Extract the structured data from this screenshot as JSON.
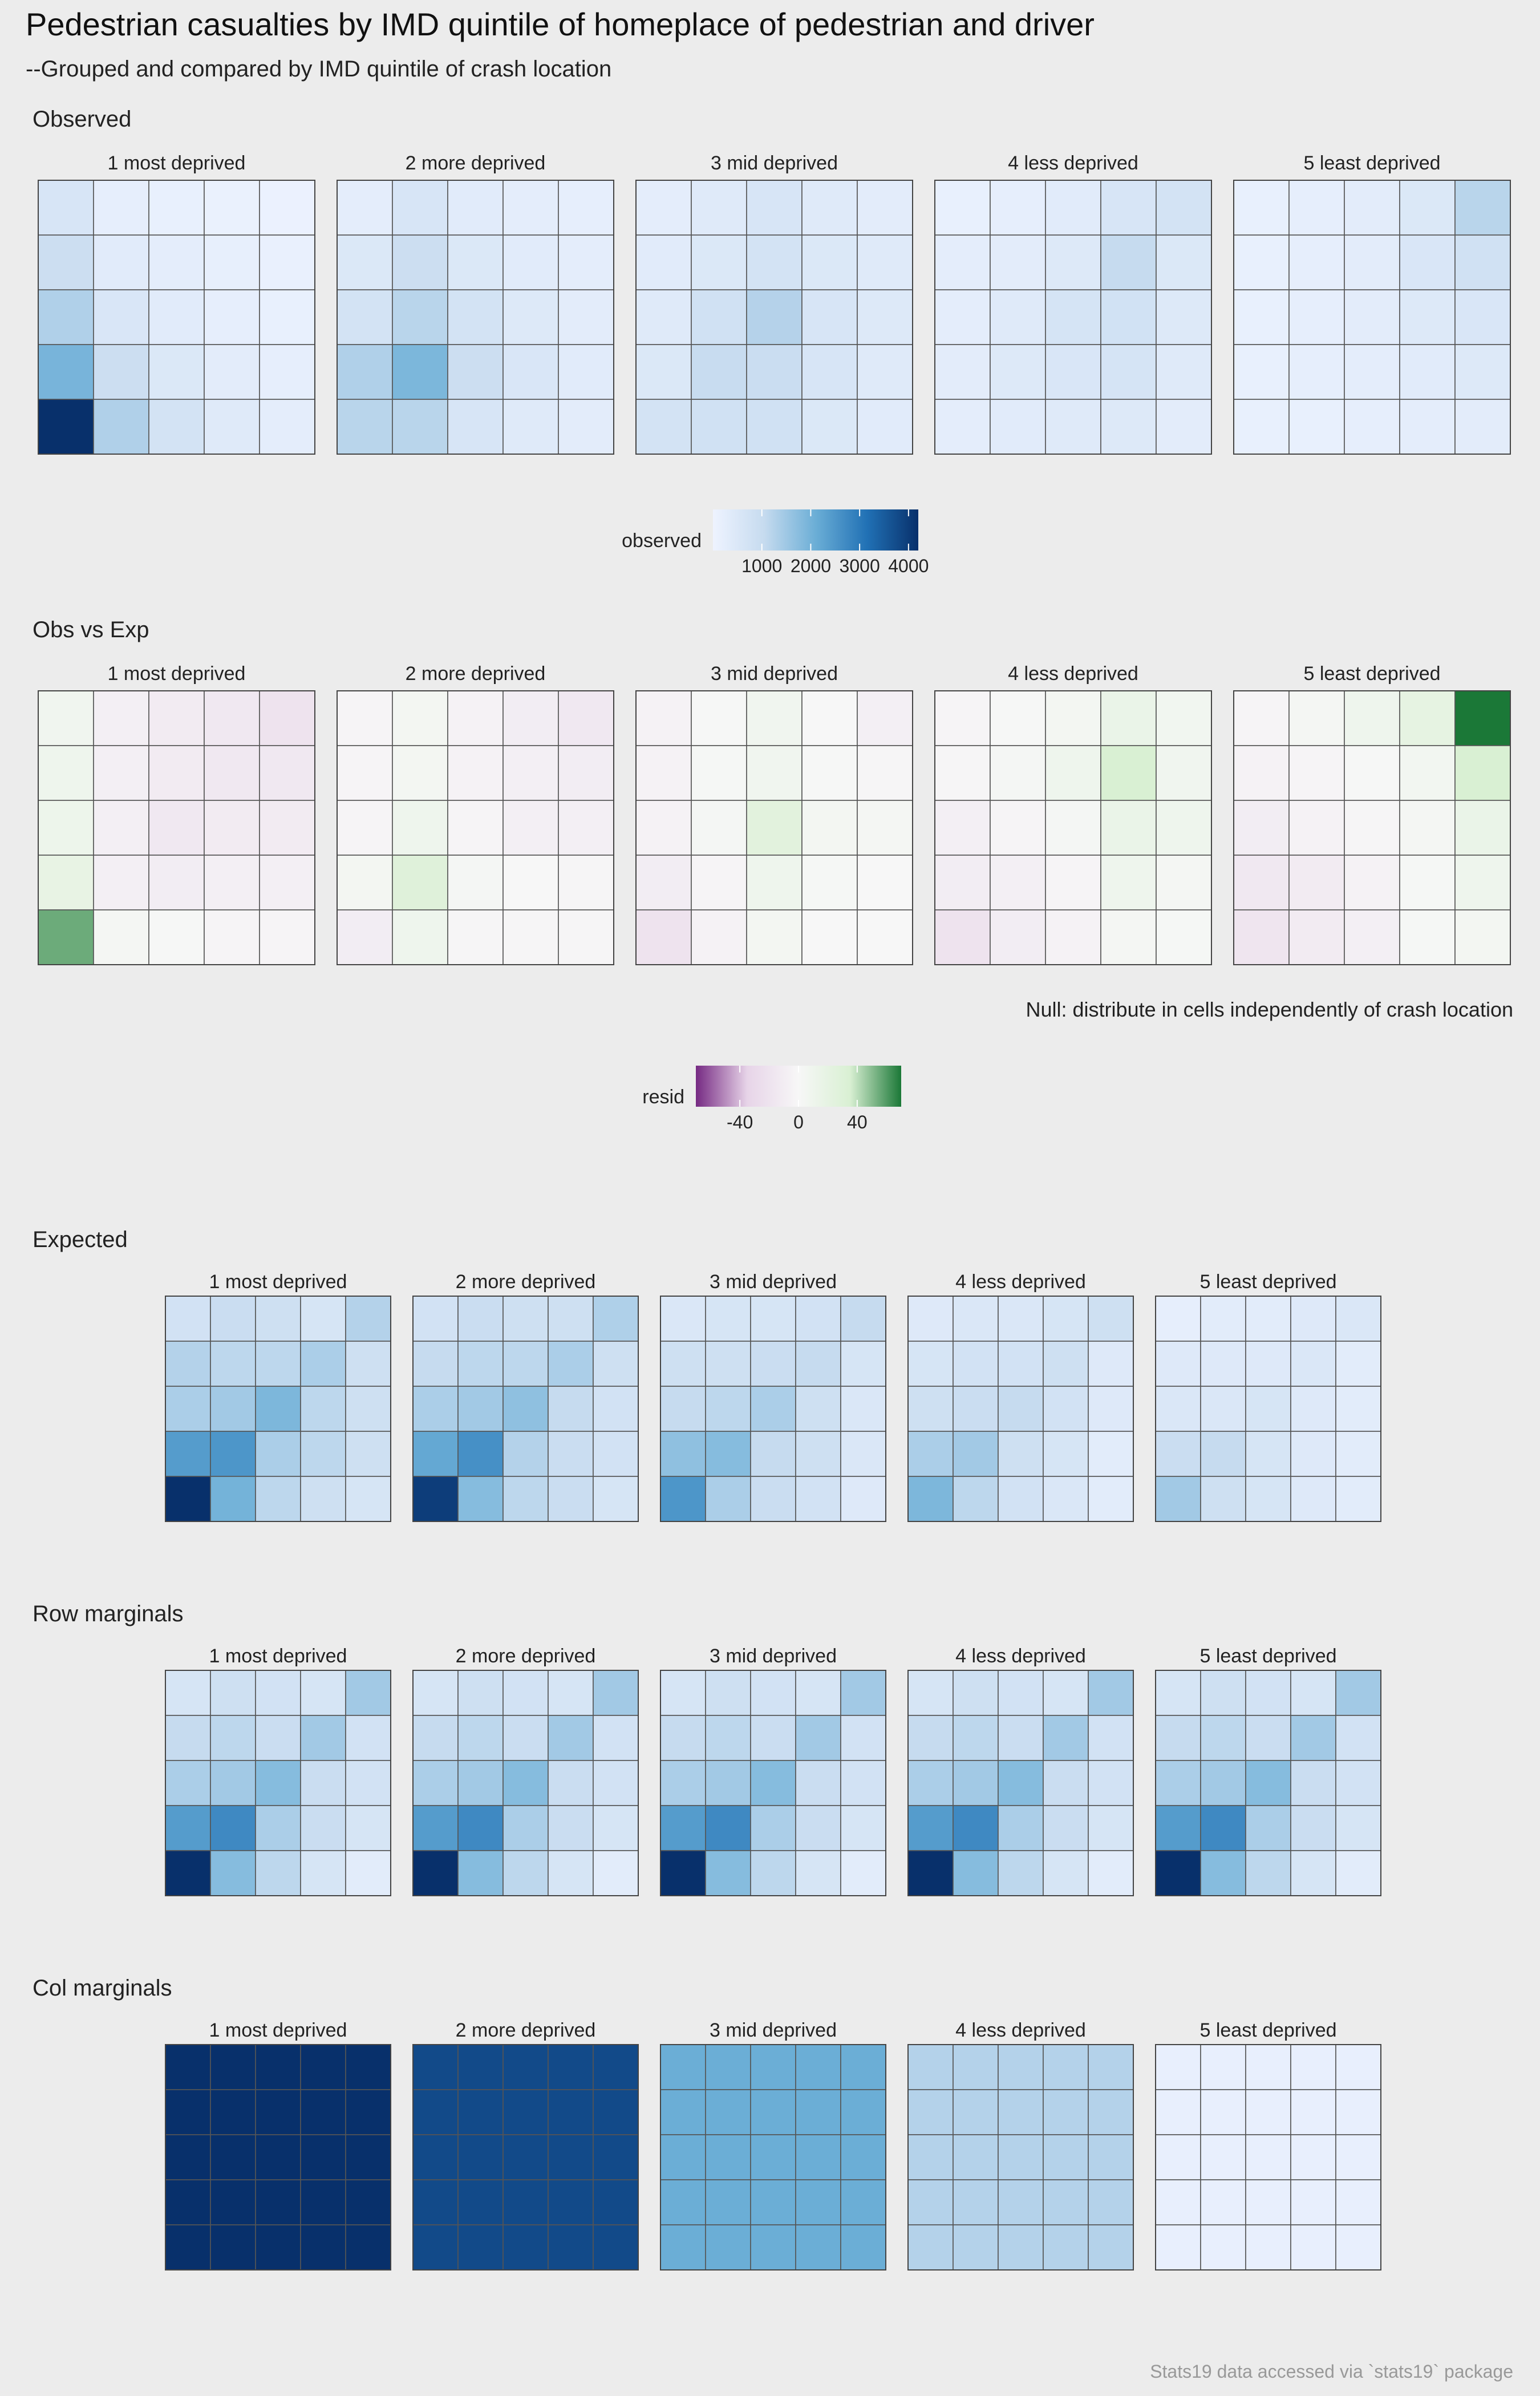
{
  "title": "Pedestrian casualties by IMD quintile of homeplace of pedestrian and driver",
  "subtitle": "--Grouped and compared by IMD quintile of crash location",
  "caption": "Stats19 data accessed via `stats19` package",
  "colors": {
    "background": "#ececec",
    "cell_border": "#555555",
    "blues": [
      "#eef3ff",
      "#c6dbef",
      "#6baed6",
      "#2171b5",
      "#08306b"
    ],
    "diverging": [
      "#762a83",
      "#e7d4e8",
      "#f7f7f7",
      "#d9f0d3",
      "#1b7837"
    ]
  },
  "chart_data": [
    {
      "type": "heatmap",
      "title": "Observed",
      "facets": [
        "1 most deprived",
        "2 more deprived",
        "3 mid deprived",
        "4 less deprived",
        "5 least deprived"
      ],
      "scale": "blues",
      "domain": [
        0,
        4200
      ],
      "legend": {
        "title": "observed",
        "ticks": [
          "1000",
          "2000",
          "3000",
          "4000"
        ],
        "tick_values": [
          1000,
          2000,
          3000,
          4000
        ]
      },
      "matrices": [
        [
          [
            600,
            200,
            150,
            100,
            80
          ],
          [
            900,
            350,
            250,
            180,
            120
          ],
          [
            1300,
            550,
            350,
            220,
            150
          ],
          [
            1950,
            900,
            500,
            300,
            200
          ],
          [
            4200,
            1300,
            700,
            400,
            250
          ]
        ],
        [
          [
            250,
            600,
            350,
            250,
            200
          ],
          [
            500,
            900,
            500,
            350,
            250
          ],
          [
            700,
            1200,
            700,
            450,
            300
          ],
          [
            1300,
            1900,
            900,
            550,
            350
          ],
          [
            1200,
            1200,
            600,
            400,
            300
          ]
        ],
        [
          [
            250,
            400,
            600,
            400,
            300
          ],
          [
            350,
            500,
            700,
            500,
            400
          ],
          [
            400,
            800,
            1250,
            600,
            450
          ],
          [
            500,
            1000,
            950,
            600,
            400
          ],
          [
            700,
            800,
            800,
            500,
            350
          ]
        ],
        [
          [
            150,
            200,
            350,
            600,
            700
          ],
          [
            250,
            300,
            450,
            1050,
            500
          ],
          [
            250,
            400,
            650,
            750,
            450
          ],
          [
            300,
            450,
            550,
            650,
            400
          ],
          [
            250,
            350,
            400,
            450,
            300
          ]
        ],
        [
          [
            150,
            200,
            300,
            500,
            1200
          ],
          [
            150,
            200,
            300,
            550,
            800
          ],
          [
            150,
            200,
            300,
            450,
            550
          ],
          [
            150,
            200,
            250,
            350,
            450
          ],
          [
            150,
            150,
            200,
            250,
            300
          ]
        ]
      ]
    },
    {
      "type": "heatmap",
      "title": "Obs vs Exp",
      "note": "Null: distribute in cells independently of crash location",
      "facets": [
        "1 most deprived",
        "2 more deprived",
        "3 mid deprived",
        "4 less deprived",
        "5 least deprived"
      ],
      "scale": "diverging",
      "domain": [
        -70,
        70
      ],
      "legend": {
        "title": "resid",
        "ticks": [
          "-40",
          "0",
          "40"
        ],
        "tick_values": [
          -40,
          0,
          40
        ]
      },
      "matrices": [
        [
          [
            8,
            -8,
            -12,
            -15,
            -20
          ],
          [
            10,
            -8,
            -12,
            -15,
            -15
          ],
          [
            12,
            -8,
            -15,
            -12,
            -12
          ],
          [
            18,
            -8,
            -10,
            -8,
            -8
          ],
          [
            55,
            4,
            1,
            -3,
            -3
          ]
        ],
        [
          [
            -3,
            5,
            -5,
            -10,
            -15
          ],
          [
            -3,
            5,
            -5,
            -8,
            -10
          ],
          [
            -3,
            10,
            -3,
            -8,
            -8
          ],
          [
            5,
            28,
            3,
            0,
            -2
          ],
          [
            -10,
            10,
            -2,
            -2,
            -2
          ]
        ],
        [
          [
            -5,
            1,
            8,
            0,
            -8
          ],
          [
            -5,
            2,
            8,
            1,
            -2
          ],
          [
            -5,
            3,
            25,
            5,
            4
          ],
          [
            -10,
            -3,
            10,
            2,
            0
          ],
          [
            -20,
            -5,
            5,
            0,
            0
          ]
        ],
        [
          [
            -3,
            1,
            5,
            15,
            7
          ],
          [
            -2,
            3,
            10,
            35,
            8
          ],
          [
            -8,
            -3,
            3,
            15,
            10
          ],
          [
            -10,
            -8,
            -3,
            10,
            4
          ],
          [
            -20,
            -10,
            -5,
            4,
            2
          ]
        ],
        [
          [
            -3,
            4,
            10,
            20,
            70
          ],
          [
            -5,
            -3,
            1,
            6,
            35
          ],
          [
            -10,
            -5,
            -2,
            4,
            15
          ],
          [
            -15,
            -12,
            -5,
            2,
            10
          ],
          [
            -18,
            -12,
            -8,
            2,
            5
          ]
        ]
      ]
    },
    {
      "type": "heatmap",
      "title": "Expected",
      "facets": [
        "1 most deprived",
        "2 more deprived",
        "3 mid deprived",
        "4 less deprived",
        "5 least deprived"
      ],
      "scale": "blues",
      "domain": [
        0,
        4000
      ],
      "matrices": [
        [
          [
            700,
            900,
            800,
            600,
            1200
          ],
          [
            1200,
            1100,
            1100,
            1300,
            800
          ],
          [
            1300,
            1400,
            1800,
            1100,
            800
          ],
          [
            2300,
            2400,
            1300,
            1100,
            800
          ],
          [
            4000,
            1900,
            1100,
            800,
            600
          ]
        ],
        [
          [
            700,
            900,
            800,
            800,
            1250
          ],
          [
            1000,
            1100,
            1100,
            1300,
            800
          ],
          [
            1300,
            1400,
            1600,
            1000,
            700
          ],
          [
            2100,
            2500,
            1200,
            900,
            700
          ],
          [
            3800,
            1700,
            1100,
            900,
            600
          ]
        ],
        [
          [
            500,
            600,
            600,
            700,
            1000
          ],
          [
            800,
            800,
            900,
            1000,
            600
          ],
          [
            1000,
            1100,
            1300,
            800,
            500
          ],
          [
            1600,
            1700,
            1000,
            800,
            500
          ],
          [
            2400,
            1300,
            900,
            700,
            400
          ]
        ],
        [
          [
            400,
            500,
            500,
            600,
            800
          ],
          [
            600,
            700,
            700,
            800,
            400
          ],
          [
            800,
            900,
            1000,
            700,
            400
          ],
          [
            1300,
            1400,
            800,
            600,
            300
          ],
          [
            1800,
            1100,
            700,
            500,
            300
          ]
        ],
        [
          [
            200,
            300,
            300,
            400,
            500
          ],
          [
            400,
            400,
            400,
            500,
            300
          ],
          [
            500,
            500,
            600,
            400,
            300
          ],
          [
            900,
            1000,
            600,
            400,
            300
          ],
          [
            1400,
            800,
            600,
            400,
            300
          ]
        ]
      ]
    },
    {
      "type": "heatmap",
      "title": "Row marginals",
      "facets": [
        "1 most deprived",
        "2 more deprived",
        "3 mid deprived",
        "4 less deprived",
        "5 least deprived"
      ],
      "scale": "blues",
      "domain": [
        0,
        4000
      ],
      "matrices": [
        [
          [
            600,
            800,
            700,
            600,
            1400
          ],
          [
            1000,
            1100,
            900,
            1400,
            700
          ],
          [
            1300,
            1400,
            1700,
            900,
            700
          ],
          [
            2300,
            2600,
            1300,
            900,
            600
          ],
          [
            4000,
            1700,
            1100,
            600,
            300
          ]
        ],
        [
          [
            600,
            800,
            700,
            600,
            1400
          ],
          [
            1000,
            1100,
            900,
            1400,
            700
          ],
          [
            1300,
            1400,
            1700,
            900,
            700
          ],
          [
            2300,
            2600,
            1300,
            900,
            600
          ],
          [
            4000,
            1700,
            1100,
            600,
            300
          ]
        ],
        [
          [
            600,
            800,
            700,
            600,
            1400
          ],
          [
            1000,
            1100,
            900,
            1400,
            700
          ],
          [
            1300,
            1400,
            1700,
            900,
            700
          ],
          [
            2300,
            2600,
            1300,
            900,
            600
          ],
          [
            4000,
            1700,
            1100,
            600,
            300
          ]
        ],
        [
          [
            600,
            800,
            700,
            600,
            1400
          ],
          [
            1000,
            1100,
            900,
            1400,
            700
          ],
          [
            1300,
            1400,
            1700,
            900,
            700
          ],
          [
            2300,
            2600,
            1300,
            900,
            600
          ],
          [
            4000,
            1700,
            1100,
            600,
            300
          ]
        ],
        [
          [
            600,
            800,
            700,
            600,
            1400
          ],
          [
            1000,
            1100,
            900,
            1400,
            700
          ],
          [
            1300,
            1400,
            1700,
            900,
            700
          ],
          [
            2300,
            2600,
            1300,
            900,
            600
          ],
          [
            4000,
            1700,
            1100,
            600,
            300
          ]
        ]
      ]
    },
    {
      "type": "heatmap",
      "title": "Col marginals",
      "facets": [
        "1 most deprived",
        "2 more deprived",
        "3 mid deprived",
        "4 less deprived",
        "5 least deprived"
      ],
      "scale": "blues",
      "domain": [
        0,
        4000
      ],
      "matrices": [
        [
          [
            4000,
            4000,
            4000,
            4000,
            4000
          ],
          [
            4000,
            4000,
            4000,
            4000,
            4000
          ],
          [
            4000,
            4000,
            4000,
            4000,
            4000
          ],
          [
            4000,
            4000,
            4000,
            4000,
            4000
          ],
          [
            4000,
            4000,
            4000,
            4000,
            4000
          ]
        ],
        [
          [
            3600,
            3600,
            3600,
            3600,
            3600
          ],
          [
            3600,
            3600,
            3600,
            3600,
            3600
          ],
          [
            3600,
            3600,
            3600,
            3600,
            3600
          ],
          [
            3600,
            3600,
            3600,
            3600,
            3600
          ],
          [
            3600,
            3600,
            3600,
            3600,
            3600
          ]
        ],
        [
          [
            2000,
            2000,
            2000,
            2000,
            2000
          ],
          [
            2000,
            2000,
            2000,
            2000,
            2000
          ],
          [
            2000,
            2000,
            2000,
            2000,
            2000
          ],
          [
            2000,
            2000,
            2000,
            2000,
            2000
          ],
          [
            2000,
            2000,
            2000,
            2000,
            2000
          ]
        ],
        [
          [
            1200,
            1200,
            1200,
            1200,
            1200
          ],
          [
            1200,
            1200,
            1200,
            1200,
            1200
          ],
          [
            1200,
            1200,
            1200,
            1200,
            1200
          ],
          [
            1200,
            1200,
            1200,
            1200,
            1200
          ],
          [
            1200,
            1200,
            1200,
            1200,
            1200
          ]
        ],
        [
          [
            150,
            150,
            150,
            150,
            150
          ],
          [
            150,
            150,
            150,
            150,
            150
          ],
          [
            150,
            150,
            150,
            150,
            150
          ],
          [
            150,
            150,
            150,
            150,
            150
          ],
          [
            150,
            150,
            150,
            150,
            150
          ]
        ]
      ]
    }
  ]
}
